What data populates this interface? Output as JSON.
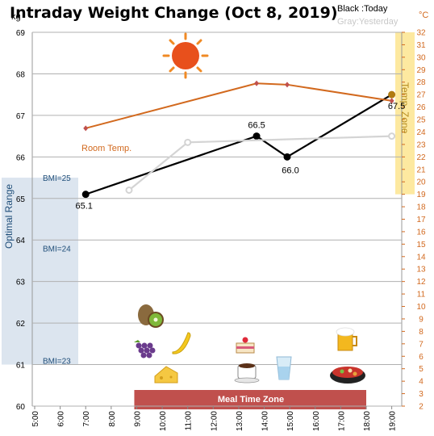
{
  "chart_data": {
    "type": "line",
    "title": "Intraday Weight Change (Oct 8, 2019)",
    "legend": {
      "today": "Black :Today",
      "yesterday": "Gray:Yesterday"
    },
    "y_left": {
      "unit": "kg",
      "min": 60,
      "max": 69,
      "ticks": [
        60,
        61,
        62,
        63,
        64,
        65,
        66,
        67,
        68,
        69
      ]
    },
    "y_right": {
      "unit": "°C",
      "min": 2,
      "max": 32,
      "ticks": [
        2,
        3,
        4,
        5,
        6,
        7,
        8,
        9,
        10,
        11,
        12,
        13,
        14,
        15,
        16,
        17,
        18,
        19,
        20,
        21,
        22,
        23,
        24,
        25,
        26,
        27,
        28,
        29,
        30,
        31,
        32
      ]
    },
    "x_axis": {
      "min": 5,
      "max": 19.5,
      "ticks": [
        {
          "t": 5,
          "label": "5:00"
        },
        {
          "t": 6,
          "label": "6:00"
        },
        {
          "t": 7,
          "label": "7:00"
        },
        {
          "t": 8,
          "label": "8:00"
        },
        {
          "t": 9,
          "label": "9:00"
        },
        {
          "t": 10,
          "label": "10:00"
        },
        {
          "t": 11,
          "label": "11:00"
        },
        {
          "t": 12,
          "label": "12:00"
        },
        {
          "t": 13,
          "label": "13:00"
        },
        {
          "t": 14,
          "label": "14:00"
        },
        {
          "t": 15,
          "label": "15:00"
        },
        {
          "t": 16,
          "label": "16:00"
        },
        {
          "t": 17,
          "label": "17:00"
        },
        {
          "t": 18,
          "label": "18:00"
        },
        {
          "t": 19,
          "label": "19:00"
        }
      ]
    },
    "series": [
      {
        "name": "Today",
        "color": "#000000",
        "axis": "left",
        "points": [
          {
            "t": 7,
            "v": 65.1,
            "label": "65.1"
          },
          {
            "t": 13.7,
            "v": 66.5,
            "label": "66.5"
          },
          {
            "t": 14.9,
            "v": 66.0,
            "label": "66.0"
          },
          {
            "t": 19,
            "v": 67.5,
            "label": "67.5"
          }
        ]
      },
      {
        "name": "Yesterday",
        "color": "#d4d4d4",
        "axis": "left",
        "points": [
          {
            "t": 8.7,
            "v": 65.2
          },
          {
            "t": 11,
            "v": 66.35
          },
          {
            "t": 19,
            "v": 66.5
          }
        ]
      },
      {
        "name": "Room Temp.",
        "color": "#d2691e",
        "axis": "right",
        "points": [
          {
            "t": 7,
            "v": 24.3
          },
          {
            "t": 13.7,
            "v": 27.9
          },
          {
            "t": 14.9,
            "v": 27.8
          },
          {
            "t": 19,
            "v": 26.5
          }
        ]
      }
    ],
    "bands": {
      "optimal": {
        "label": "Optimal Range",
        "ymin": 61,
        "ymax": 65.5,
        "color": "#dce5ef"
      },
      "bmi": [
        {
          "label": "BMI=25",
          "v": 65.5
        },
        {
          "label": "BMI=24",
          "v": 63.8
        },
        {
          "label": "BMI=23",
          "v": 61.1
        }
      ],
      "meal": {
        "label": "Meal Time Zone",
        "tmin": 9,
        "tmax": 18,
        "color": "#c0504d"
      },
      "temp_zone": {
        "label": "Temp. Zone",
        "tmin": 19,
        "tmax": 20,
        "ymin_c": 19,
        "ymax_c": 32,
        "color": "#fde9a0"
      }
    },
    "annotations": {
      "room_temp_label": "Room Temp.",
      "icons": [
        "sun-icon",
        "kiwi-icon",
        "grapes-icon",
        "banana-icon",
        "cheese-icon",
        "cake-icon",
        "coffee-icon",
        "water-glass-icon",
        "beer-icon",
        "hotpot-icon"
      ]
    },
    "grid": true,
    "colors": {
      "left_axis": "#000000",
      "right_axis": "#d2691e",
      "title": "#000000"
    }
  }
}
